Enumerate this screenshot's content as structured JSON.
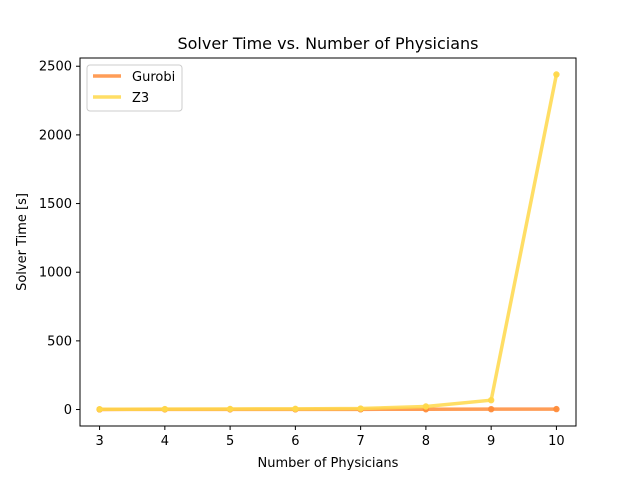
{
  "chart_data": {
    "type": "line",
    "title": "Solver Time vs. Number of Physicians",
    "xlabel": "Number of Physicians",
    "ylabel": "Solver Time [s]",
    "x": [
      3,
      4,
      5,
      6,
      7,
      8,
      9,
      10
    ],
    "xlim": [
      2.7,
      10.3
    ],
    "ylim": [
      -120,
      2560
    ],
    "xticks": [
      "3",
      "4",
      "5",
      "6",
      "7",
      "8",
      "9",
      "10"
    ],
    "yticks": [
      "0",
      "500",
      "1000",
      "1500",
      "2000",
      "2500"
    ],
    "legend_position": "upper-left",
    "series": [
      {
        "name": "Gurobi",
        "color": "#ff8c3a",
        "values": [
          0.5,
          0.8,
          1.0,
          1.2,
          1.5,
          2.0,
          2.5,
          3.0
        ]
      },
      {
        "name": "Z3",
        "color": "#ffd84a",
        "values": [
          2,
          3,
          4,
          5,
          7,
          22,
          68,
          2440
        ]
      }
    ],
    "grid": false
  }
}
